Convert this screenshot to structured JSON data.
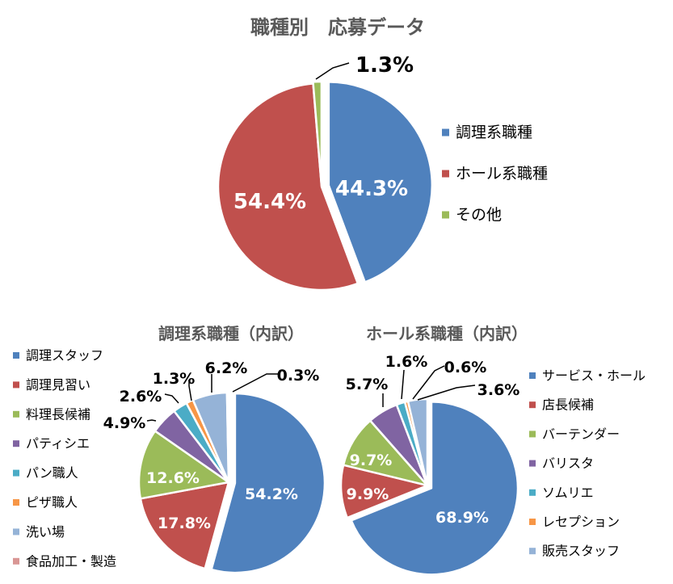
{
  "chart_data": [
    {
      "type": "pie",
      "title": "職種別　応募データ",
      "legend_position": "right",
      "slices": [
        {
          "label": "調理系職種",
          "value": 44.3,
          "display": "44.3%",
          "color": "#4F81BD"
        },
        {
          "label": "ホール系職種",
          "value": 54.4,
          "display": "54.4%",
          "color": "#C0504D"
        },
        {
          "label": "その他",
          "value": 1.3,
          "display": "1.3%",
          "color": "#9BBB59"
        }
      ]
    },
    {
      "type": "pie",
      "title": "調理系職種（内訳）",
      "legend_position": "left",
      "slices": [
        {
          "label": "調理スタッフ",
          "value": 54.2,
          "display": "54.2%",
          "color": "#4F81BD"
        },
        {
          "label": "調理見習い",
          "value": 17.8,
          "display": "17.8%",
          "color": "#C0504D"
        },
        {
          "label": "料理長候補",
          "value": 12.6,
          "display": "12.6%",
          "color": "#9BBB59"
        },
        {
          "label": "パティシエ",
          "value": 4.9,
          "display": "4.9%",
          "color": "#8064A2"
        },
        {
          "label": "パン職人",
          "value": 2.6,
          "display": "2.6%",
          "color": "#4BACC6"
        },
        {
          "label": "ピザ職人",
          "value": 1.3,
          "display": "1.3%",
          "color": "#F79646"
        },
        {
          "label": "洗い場",
          "value": 6.2,
          "display": "6.2%",
          "color": "#95B3D7"
        },
        {
          "label": "食品加工・製造",
          "value": 0.3,
          "display": "0.3%",
          "color": "#D99694"
        }
      ]
    },
    {
      "type": "pie",
      "title": "ホール系職種（内訳）",
      "legend_position": "right",
      "slices": [
        {
          "label": "サービス・ホール",
          "value": 68.9,
          "display": "68.9%",
          "color": "#4F81BD"
        },
        {
          "label": "店長候補",
          "value": 9.9,
          "display": "9.9%",
          "color": "#C0504D"
        },
        {
          "label": "バーテンダー",
          "value": 9.7,
          "display": "9.7%",
          "color": "#9BBB59"
        },
        {
          "label": "バリスタ",
          "value": 5.7,
          "display": "5.7%",
          "color": "#8064A2"
        },
        {
          "label": "ソムリエ",
          "value": 1.6,
          "display": "1.6%",
          "color": "#4BACC6"
        },
        {
          "label": "レセプション",
          "value": 0.6,
          "display": "0.6%",
          "color": "#F79646"
        },
        {
          "label": "販売スタッフ",
          "value": 3.6,
          "display": "3.6%",
          "color": "#95B3D7"
        }
      ]
    }
  ]
}
